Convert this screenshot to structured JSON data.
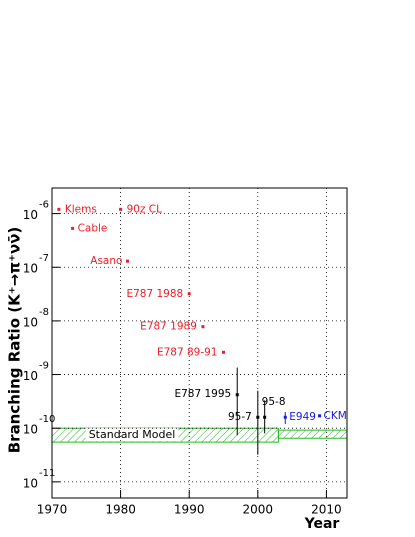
{
  "chart_data": {
    "type": "scatter",
    "x_label": "Year",
    "y_label": "Branching Ratio (K⁺→π⁺νν̄)",
    "log_y": true,
    "grid": true,
    "xlim": [
      1970,
      2013
    ],
    "ylim": [
      5e-12,
      3e-06
    ],
    "xticks": [
      1970,
      1980,
      1990,
      2000,
      2010
    ],
    "yticks": [
      {
        "value": 1e-06,
        "label": "10",
        "exponent": "-6"
      },
      {
        "value": 1e-07,
        "label": "10",
        "exponent": "-7"
      },
      {
        "value": 1e-08,
        "label": "10",
        "exponent": "-8"
      },
      {
        "value": 1e-09,
        "label": "10",
        "exponent": "-9"
      },
      {
        "value": 1e-10,
        "label": "10",
        "exponent": "-10"
      },
      {
        "value": 1e-11,
        "label": "10",
        "exponent": "-11"
      }
    ],
    "points": [
      {
        "label": "Klems",
        "x": 1971,
        "y": 1.2e-06,
        "color": "#e8202a"
      },
      {
        "label": "Cable",
        "x": 1973,
        "y": 5.3e-07,
        "color": "#e8202a"
      },
      {
        "label": "90z CL",
        "x": 1980,
        "y": 1.2e-06,
        "color": "#e8202a"
      },
      {
        "label": "Asano",
        "x": 1981,
        "y": 1.3e-07,
        "color": "#e8202a"
      },
      {
        "label": "E787 1988",
        "x": 1990,
        "y": 3.2e-08,
        "color": "#e8202a"
      },
      {
        "label": "E787 1989",
        "x": 1992,
        "y": 7.8e-09,
        "color": "#e8202a"
      },
      {
        "label": "E787 89-91",
        "x": 1995,
        "y": 2.6e-09,
        "color": "#e8202a"
      },
      {
        "label": "E787 1995",
        "x": 1997,
        "y": 4.2e-10,
        "y_low": 7.4e-11,
        "y_high": 1.35e-09,
        "color": "#000000"
      },
      {
        "label": "95-7",
        "x": 2000,
        "y": 1.6e-10,
        "y_low": 3.2e-11,
        "y_high": 5e-10,
        "color": "#000000"
      },
      {
        "label": "95-8",
        "x": 2001,
        "y": 1.6e-10,
        "y_low": 8e-11,
        "y_high": 3.3e-10,
        "color": "#000000"
      },
      {
        "label": "E949",
        "x": 2004,
        "y": 1.6e-10,
        "y_low": 1.2e-10,
        "y_high": 2e-10,
        "color": "#1a1ad8"
      },
      {
        "label": "CKM",
        "x": 2009,
        "y": 1.7e-10,
        "color": "#1a1ad8"
      }
    ],
    "bands": [
      {
        "label": "Standard Model",
        "x": [
          1970,
          2003
        ],
        "y": [
          5.5e-11,
          1e-10
        ],
        "color": "#22bb22"
      },
      {
        "x": [
          2003,
          2013
        ],
        "y": [
          6.5e-11,
          9.2e-11
        ],
        "color": "#22bb22"
      }
    ]
  }
}
